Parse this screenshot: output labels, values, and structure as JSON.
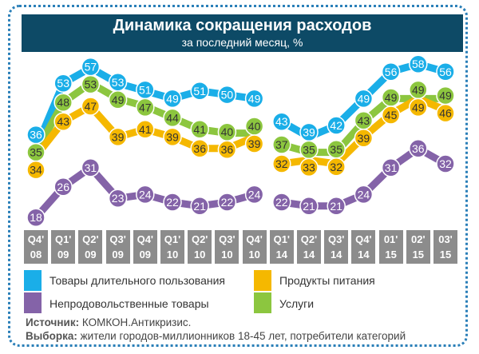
{
  "header": {
    "title": "Динамика сокращения расходов",
    "subtitle": "за последний месяц, %"
  },
  "chart_data": {
    "type": "line",
    "title": "Динамика сокращения расходов",
    "subtitle": "за последний месяц, %",
    "categories": [
      [
        "Q4'",
        "08"
      ],
      [
        "Q1'",
        "09"
      ],
      [
        "Q2'",
        "09"
      ],
      [
        "Q3'",
        "09"
      ],
      [
        "Q4'",
        "09"
      ],
      [
        "Q1'",
        "10"
      ],
      [
        "Q2'",
        "10"
      ],
      [
        "Q3'",
        "10"
      ],
      [
        "Q4'",
        "10"
      ],
      [
        "Q1'",
        "14"
      ],
      [
        "Q2'",
        "14"
      ],
      [
        "Q3'",
        "14"
      ],
      [
        "Q4'",
        "14"
      ],
      [
        "01'",
        "15"
      ],
      [
        "02'",
        "15"
      ],
      [
        "03'",
        "15"
      ]
    ],
    "break_after_index": 8,
    "series": [
      {
        "name": "Товары длительного пользования",
        "color": "#1aaee8",
        "values": [
          36,
          53,
          57,
          53,
          51,
          49,
          51,
          50,
          49,
          43,
          39,
          42,
          49,
          56,
          58,
          56
        ]
      },
      {
        "name": "Услуги",
        "color": "#8cc63f",
        "values": [
          35,
          48,
          53,
          49,
          47,
          44,
          41,
          40,
          40,
          37,
          35,
          35,
          43,
          49,
          49,
          49
        ]
      },
      {
        "name": "Продукты питания",
        "color": "#f5b800",
        "values": [
          34,
          43,
          47,
          39,
          41,
          39,
          36,
          36,
          39,
          32,
          33,
          32,
          39,
          45,
          49,
          46
        ]
      },
      {
        "name": "Непродовольственные товары",
        "color": "#8463a8",
        "values": [
          18,
          26,
          31,
          23,
          24,
          22,
          21,
          22,
          24,
          22,
          21,
          21,
          24,
          31,
          36,
          32
        ]
      }
    ],
    "ylabel": "%",
    "ylim": [
      15,
      60
    ]
  },
  "legend": [
    {
      "label": "Товары длительного пользования",
      "color": "#1aaee8"
    },
    {
      "label": "Продукты питания",
      "color": "#f5b800"
    },
    {
      "label": "Непродовольственные товары",
      "color": "#8463a8"
    },
    {
      "label": "Услуги",
      "color": "#8cc63f"
    }
  ],
  "source": {
    "label": "Источник:",
    "text": "КОМКОН.Антикризис."
  },
  "sample": {
    "label": "Выборка:",
    "text": "жители городов-миллионников 18-45 лет, потребители категорий"
  }
}
